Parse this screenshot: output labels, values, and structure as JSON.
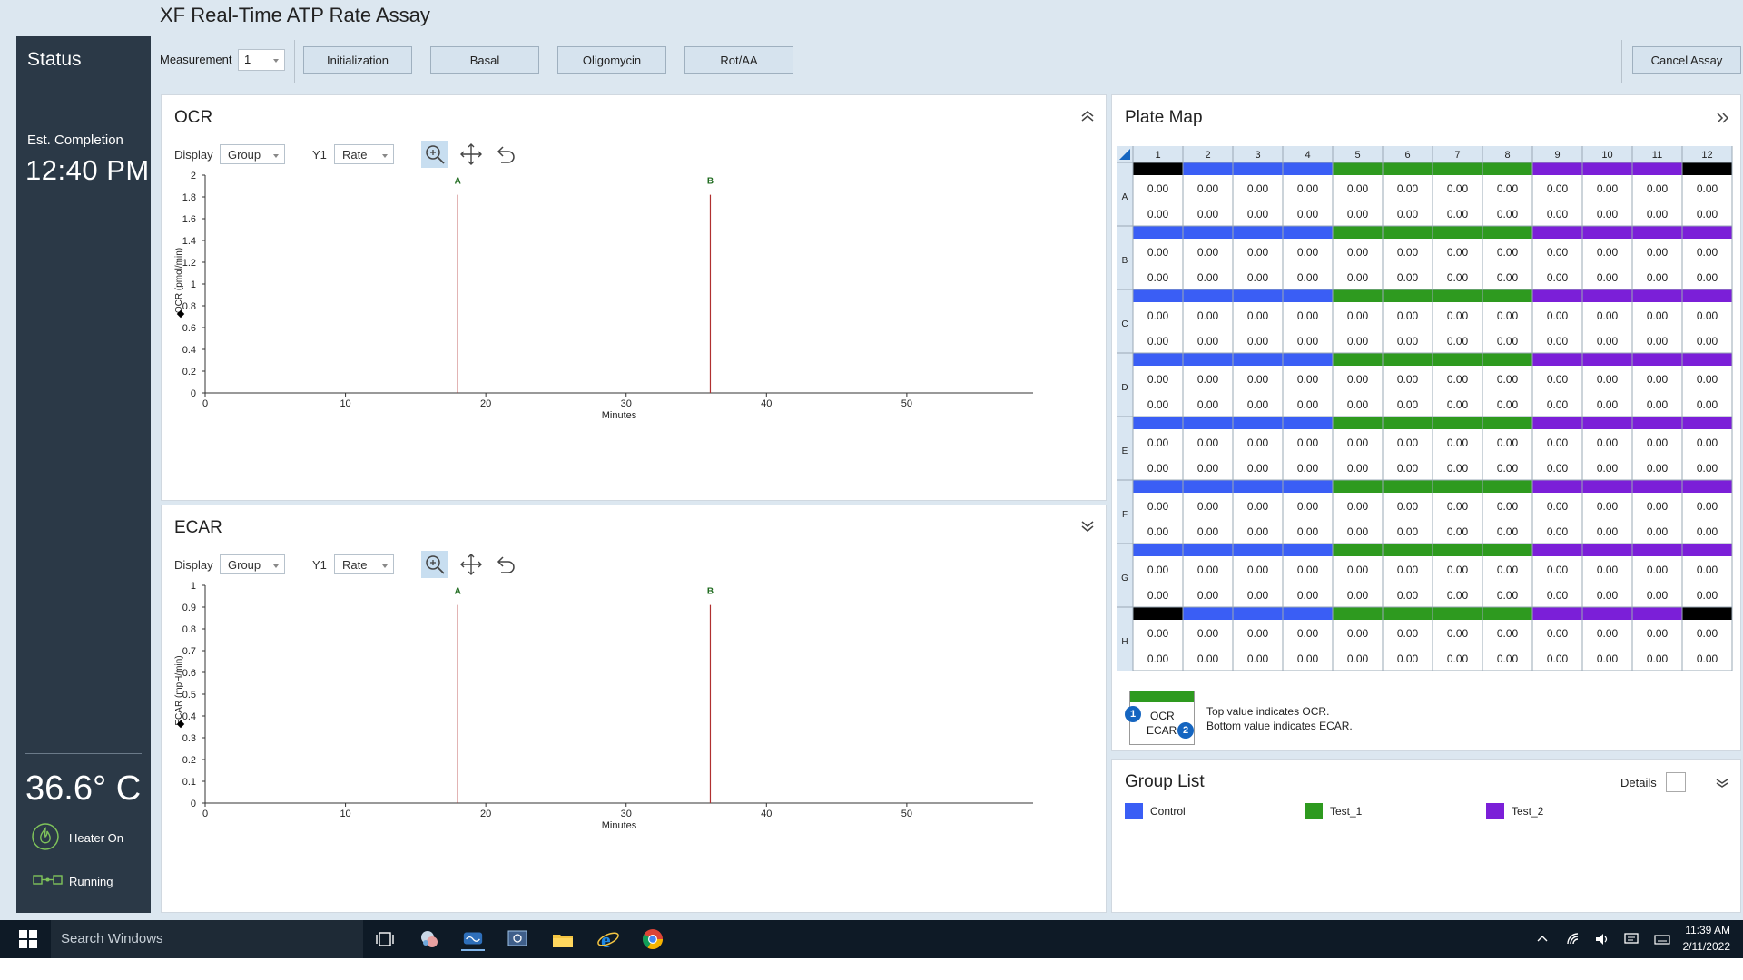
{
  "app": {
    "title": "XF Real-Time ATP Rate Assay"
  },
  "status": {
    "title": "Status",
    "est_label": "Est. Completion",
    "est_time": "12:40 PM",
    "temperature": "36.6° C",
    "heater_label": "Heater On",
    "running_label": "Running",
    "accent_color": "#7fc35a"
  },
  "toolbar": {
    "measurement_label": "Measurement",
    "measurement_value": "1",
    "steps": [
      "Initialization",
      "Basal",
      "Oligomycin",
      "Rot/AA"
    ],
    "cancel_label": "Cancel Assay"
  },
  "ocr": {
    "title": "OCR",
    "display_label": "Display",
    "display_value": "Group",
    "y1_label": "Y1",
    "y1_value": "Rate"
  },
  "ecar": {
    "title": "ECAR",
    "display_label": "Display",
    "display_value": "Group",
    "y1_label": "Y1",
    "y1_value": "Rate"
  },
  "chart_data": [
    {
      "type": "line",
      "chart": "ocr",
      "xlabel": "Minutes",
      "ylabel": "OCR (pmol/min)",
      "xlim": [
        0,
        59
      ],
      "ylim": [
        0,
        2
      ],
      "xticks": [
        "0",
        "10",
        "20",
        "30",
        "40",
        "50"
      ],
      "xtick_values": [
        0,
        10,
        20,
        30,
        40,
        50
      ],
      "yticks": [
        "0",
        "0.2",
        "0.4",
        "0.6",
        "0.8",
        "1",
        "1.2",
        "1.4",
        "1.6",
        "1.8",
        "2"
      ],
      "ytick_values": [
        0,
        0.2,
        0.4,
        0.6,
        0.8,
        1,
        1.2,
        1.4,
        1.6,
        1.8,
        2
      ],
      "injections": [
        {
          "label": "A",
          "x": 18,
          "top": 1.82
        },
        {
          "label": "B",
          "x": 36,
          "top": 1.82
        }
      ],
      "series": []
    },
    {
      "type": "line",
      "chart": "ecar",
      "xlabel": "Minutes",
      "ylabel": "ECAR (mpH/min)",
      "xlim": [
        0,
        59
      ],
      "ylim": [
        0,
        1
      ],
      "xticks": [
        "0",
        "10",
        "20",
        "30",
        "40",
        "50"
      ],
      "xtick_values": [
        0,
        10,
        20,
        30,
        40,
        50
      ],
      "yticks": [
        "0",
        "0.1",
        "0.2",
        "0.3",
        "0.4",
        "0.5",
        "0.6",
        "0.7",
        "0.8",
        "0.9",
        "1"
      ],
      "ytick_values": [
        0,
        0.1,
        0.2,
        0.3,
        0.4,
        0.5,
        0.6,
        0.7,
        0.8,
        0.9,
        1
      ],
      "injections": [
        {
          "label": "A",
          "x": 18,
          "top": 0.91
        },
        {
          "label": "B",
          "x": 36,
          "top": 0.91
        }
      ],
      "series": []
    }
  ],
  "plate": {
    "title": "Plate Map",
    "columns": [
      "1",
      "2",
      "3",
      "4",
      "5",
      "6",
      "7",
      "8",
      "9",
      "10",
      "11",
      "12"
    ],
    "rows": [
      "A",
      "B",
      "C",
      "D",
      "E",
      "F",
      "G",
      "H"
    ],
    "cell_value": "0.00",
    "group_colors": {
      "Control": "#3a5ef5",
      "Test_1": "#2e9a1f",
      "Test_2": "#7b1fd8",
      "Background": "#000000"
    },
    "layout": [
      [
        "Background",
        "Control",
        "Control",
        "Control",
        "Test_1",
        "Test_1",
        "Test_1",
        "Test_1",
        "Test_2",
        "Test_2",
        "Test_2",
        "Background"
      ],
      [
        "Control",
        "Control",
        "Control",
        "Control",
        "Test_1",
        "Test_1",
        "Test_1",
        "Test_1",
        "Test_2",
        "Test_2",
        "Test_2",
        "Test_2"
      ],
      [
        "Control",
        "Control",
        "Control",
        "Control",
        "Test_1",
        "Test_1",
        "Test_1",
        "Test_1",
        "Test_2",
        "Test_2",
        "Test_2",
        "Test_2"
      ],
      [
        "Control",
        "Control",
        "Control",
        "Control",
        "Test_1",
        "Test_1",
        "Test_1",
        "Test_1",
        "Test_2",
        "Test_2",
        "Test_2",
        "Test_2"
      ],
      [
        "Control",
        "Control",
        "Control",
        "Control",
        "Test_1",
        "Test_1",
        "Test_1",
        "Test_1",
        "Test_2",
        "Test_2",
        "Test_2",
        "Test_2"
      ],
      [
        "Control",
        "Control",
        "Control",
        "Control",
        "Test_1",
        "Test_1",
        "Test_1",
        "Test_1",
        "Test_2",
        "Test_2",
        "Test_2",
        "Test_2"
      ],
      [
        "Control",
        "Control",
        "Control",
        "Control",
        "Test_1",
        "Test_1",
        "Test_1",
        "Test_1",
        "Test_2",
        "Test_2",
        "Test_2",
        "Test_2"
      ],
      [
        "Background",
        "Control",
        "Control",
        "Control",
        "Test_1",
        "Test_1",
        "Test_1",
        "Test_1",
        "Test_2",
        "Test_2",
        "Test_2",
        "Background"
      ]
    ],
    "legend": {
      "ocr": "OCR",
      "ecar": "ECAR",
      "badge_1": "1",
      "badge_2": "2",
      "note_top": "Top value indicates OCR.",
      "note_bottom": "Bottom value indicates ECAR."
    }
  },
  "groups": {
    "title": "Group List",
    "details_label": "Details",
    "items": [
      {
        "name": "Control",
        "color": "#3a5ef5"
      },
      {
        "name": "Test_1",
        "color": "#2e9a1f"
      },
      {
        "name": "Test_2",
        "color": "#7b1fd8"
      }
    ]
  },
  "taskbar": {
    "search_placeholder": "Search Windows",
    "time": "11:39 AM",
    "date": "2/11/2022"
  }
}
